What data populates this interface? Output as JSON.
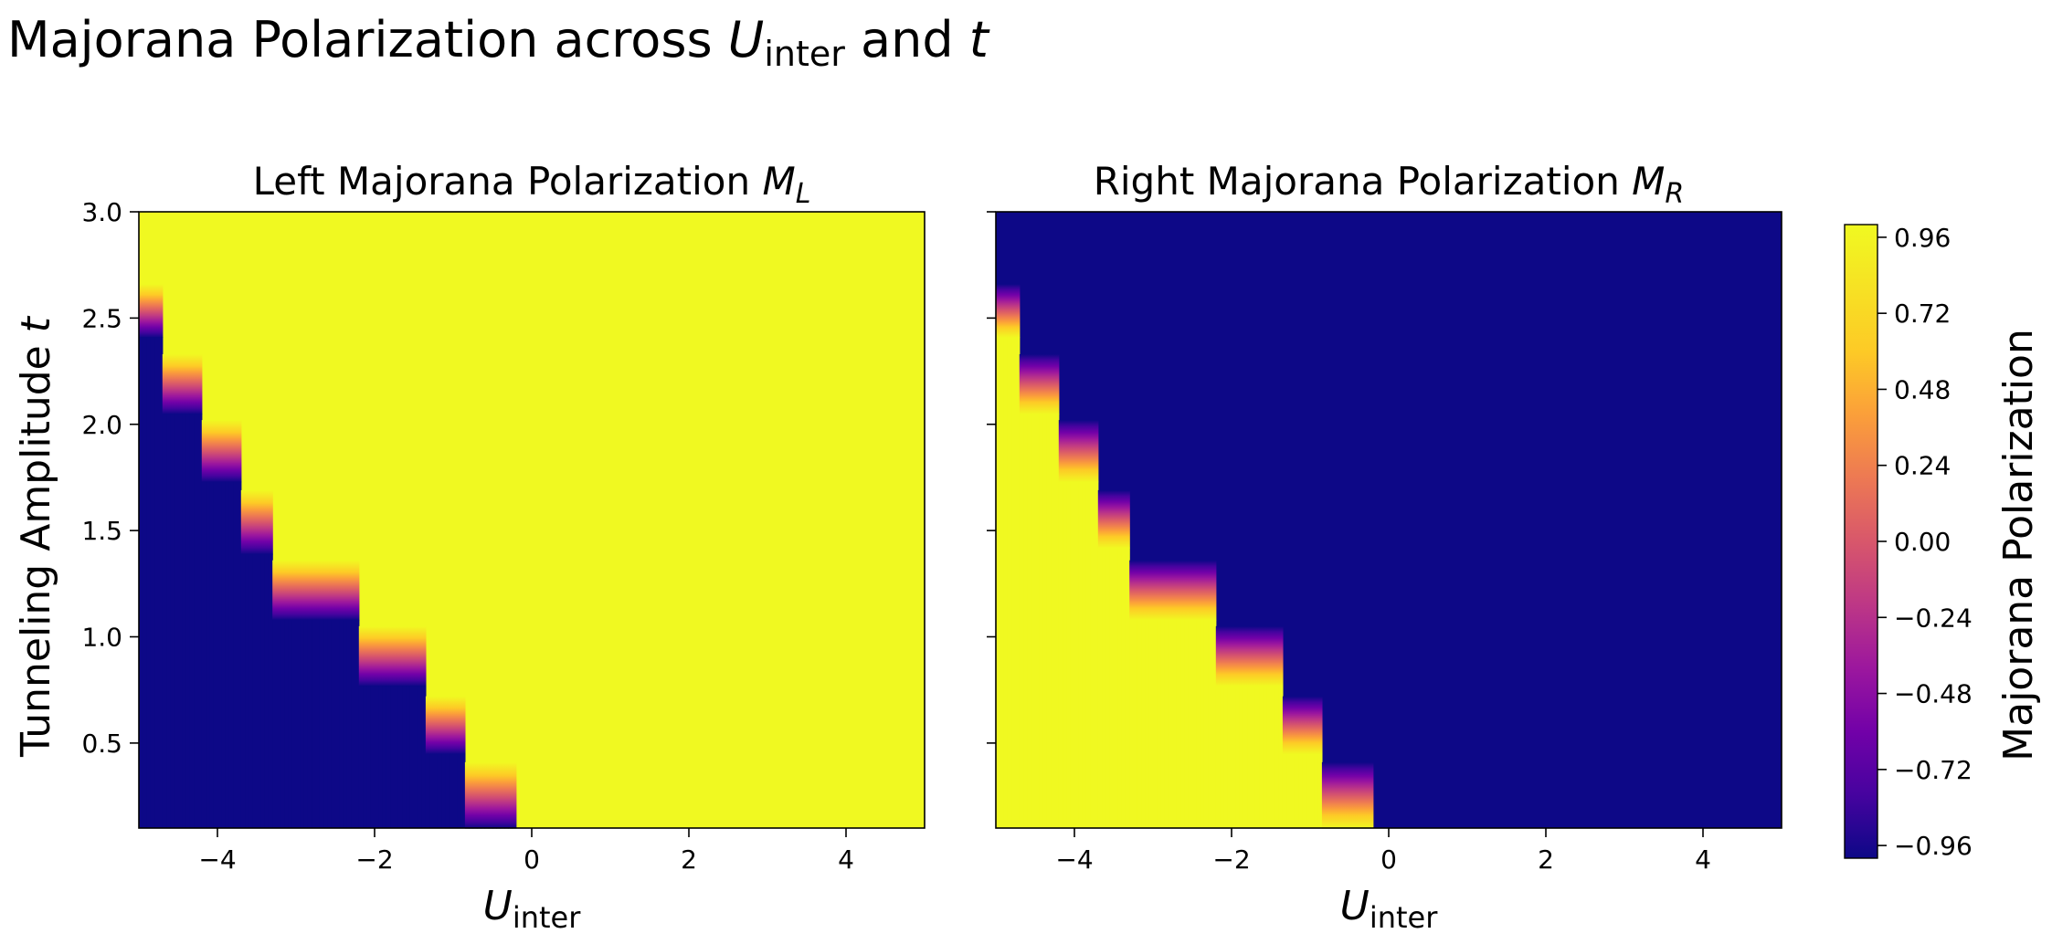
{
  "figure": {
    "title": {
      "main": "Majorana Polarization across ",
      "u": "U",
      "u_sub": "inter",
      "and": " and ",
      "t": "t"
    }
  },
  "chart_data": [
    {
      "type": "heatmap",
      "title": {
        "text": "Left Majorana Polarization ",
        "sym": "M",
        "sub": "L"
      },
      "xlabel": {
        "sym": "U",
        "sub": "inter"
      },
      "ylabel": {
        "text": "Tunneling Amplitude ",
        "sym": "t"
      },
      "xlim": [
        -5,
        5
      ],
      "ylim": [
        0.1,
        3.0
      ],
      "xticks": [
        -4,
        -2,
        0,
        2,
        4
      ],
      "xtick_labels": [
        "−4",
        "−2",
        "0",
        "2",
        "4"
      ],
      "yticks": [
        0.5,
        1.0,
        1.5,
        2.0,
        2.5,
        3.0
      ],
      "ytick_labels": [
        "0.5",
        "1.0",
        "1.5",
        "2.0",
        "2.5",
        "3.0"
      ],
      "low_value": -1,
      "high_value": 1,
      "low_region": "left",
      "boundary": [
        {
          "t_top": 2.66,
          "t_bottom": 2.41,
          "u_left": -5.0,
          "u_right": -4.68
        },
        {
          "t_top": 2.33,
          "t_bottom": 2.05,
          "u_left": -4.68,
          "u_right": -4.22
        },
        {
          "t_top": 2.02,
          "t_bottom": 1.73,
          "u_left": -4.22,
          "u_right": -3.7
        },
        {
          "t_top": 1.69,
          "t_bottom": 1.39,
          "u_left": -3.7,
          "u_right": -3.3
        },
        {
          "t_top": 1.36,
          "t_bottom": 1.08,
          "u_left": -3.3,
          "u_right": -2.2
        },
        {
          "t_top": 1.05,
          "t_bottom": 0.77,
          "u_left": -2.2,
          "u_right": -1.35
        },
        {
          "t_top": 0.72,
          "t_bottom": 0.45,
          "u_left": -1.35,
          "u_right": -0.85
        },
        {
          "t_top": 0.41,
          "t_bottom": 0.1,
          "u_left": -0.85,
          "u_right": -0.22
        }
      ]
    },
    {
      "type": "heatmap",
      "title": {
        "text": "Right Majorana Polarization ",
        "sym": "M",
        "sub": "R"
      },
      "xlabel": {
        "sym": "U",
        "sub": "inter"
      },
      "xlim": [
        -5,
        5
      ],
      "ylim": [
        0.1,
        3.0
      ],
      "xticks": [
        -4,
        -2,
        0,
        2,
        4
      ],
      "xtick_labels": [
        "−4",
        "−2",
        "0",
        "2",
        "4"
      ],
      "yticks": [
        0.5,
        1.0,
        1.5,
        2.0,
        2.5,
        3.0
      ],
      "low_value": 1,
      "high_value": -1,
      "low_region": "left",
      "boundary": [
        {
          "t_top": 2.66,
          "t_bottom": 2.41,
          "u_left": -5.0,
          "u_right": -4.68
        },
        {
          "t_top": 2.33,
          "t_bottom": 2.05,
          "u_left": -4.68,
          "u_right": -4.22
        },
        {
          "t_top": 2.02,
          "t_bottom": 1.73,
          "u_left": -4.22,
          "u_right": -3.7
        },
        {
          "t_top": 1.69,
          "t_bottom": 1.42,
          "u_left": -3.7,
          "u_right": -3.3
        },
        {
          "t_top": 1.36,
          "t_bottom": 1.08,
          "u_left": -3.3,
          "u_right": -2.2
        },
        {
          "t_top": 1.05,
          "t_bottom": 0.77,
          "u_left": -2.2,
          "u_right": -1.35
        },
        {
          "t_top": 0.72,
          "t_bottom": 0.45,
          "u_left": -1.35,
          "u_right": -0.85
        },
        {
          "t_top": 0.41,
          "t_bottom": 0.1,
          "u_left": -0.85,
          "u_right": -0.22
        }
      ]
    }
  ],
  "colorbar": {
    "label": "Majorana Polarization",
    "colormap": "plasma",
    "range": [
      -1,
      1
    ],
    "ticks": [
      0.96,
      0.72,
      0.48,
      0.24,
      0.0,
      -0.24,
      -0.48,
      -0.72,
      -0.96
    ],
    "tick_labels": [
      "0.96",
      "0.72",
      "0.48",
      "0.24",
      "0.00",
      "−0.24",
      "−0.48",
      "−0.72",
      "−0.96"
    ],
    "stops": [
      {
        "v": -1.0,
        "color": "#0d0887"
      },
      {
        "v": -0.8,
        "color": "#46039f"
      },
      {
        "v": -0.6,
        "color": "#7201a8"
      },
      {
        "v": -0.4,
        "color": "#9c179e"
      },
      {
        "v": -0.2,
        "color": "#bd3786"
      },
      {
        "v": 0.0,
        "color": "#d8576b"
      },
      {
        "v": 0.2,
        "color": "#ed7953"
      },
      {
        "v": 0.4,
        "color": "#fb9f3a"
      },
      {
        "v": 0.6,
        "color": "#fdca26"
      },
      {
        "v": 1.0,
        "color": "#f0f921"
      }
    ]
  }
}
